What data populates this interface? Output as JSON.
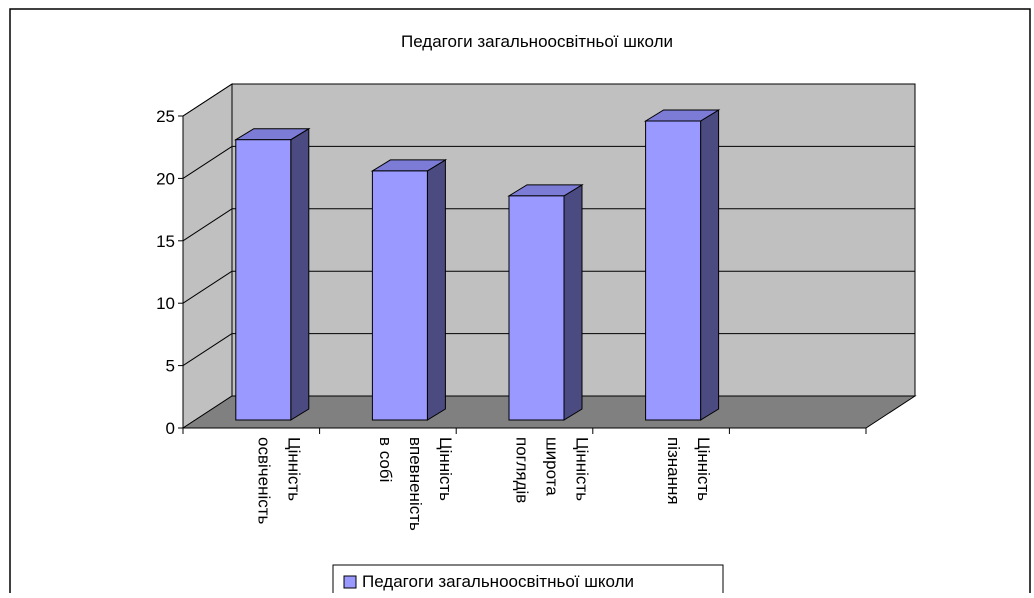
{
  "chart_data": {
    "type": "bar",
    "title": "Педагоги загальноосвітньої школи",
    "categories": [
      [
        "Цінність",
        "освіченість"
      ],
      [
        "Цінність",
        "впевненість",
        "в собі"
      ],
      [
        "Цінність",
        "широта",
        "поглядів"
      ],
      [
        "Цінність",
        "пізнання"
      ]
    ],
    "series": [
      {
        "name": "Педагоги загальноосвітньої школи",
        "values": [
          23.5,
          21,
          19,
          25
        ]
      }
    ],
    "ylim": [
      0,
      25
    ],
    "yticks": [
      0,
      5,
      10,
      15,
      20,
      25
    ],
    "grid": true,
    "legend": "bottom",
    "colors": {
      "bar_front": "#9999ff",
      "bar_side": "#4b4b82",
      "bar_top": "#7c7cd6",
      "wall": "#c0c0c0",
      "floor": "#808080"
    }
  }
}
